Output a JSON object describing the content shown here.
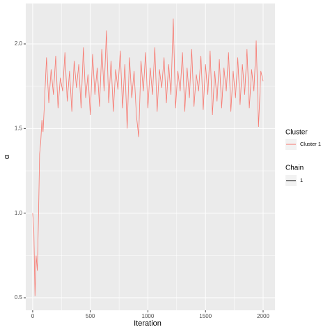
{
  "chart_data": {
    "type": "line",
    "xlabel": "Iteration",
    "ylabel": "α",
    "x": [
      0,
      10,
      20,
      30,
      40,
      50,
      60,
      70,
      80,
      90,
      100,
      120,
      140,
      160,
      180,
      200,
      220,
      240,
      260,
      280,
      300,
      320,
      340,
      360,
      380,
      400,
      420,
      440,
      460,
      480,
      500,
      520,
      540,
      560,
      580,
      600,
      620,
      640,
      660,
      680,
      700,
      720,
      740,
      760,
      780,
      800,
      820,
      840,
      860,
      880,
      900,
      920,
      940,
      960,
      980,
      1000,
      1020,
      1040,
      1060,
      1080,
      1100,
      1120,
      1140,
      1160,
      1180,
      1200,
      1220,
      1240,
      1260,
      1280,
      1300,
      1320,
      1340,
      1360,
      1380,
      1400,
      1420,
      1440,
      1460,
      1480,
      1500,
      1520,
      1540,
      1560,
      1580,
      1600,
      1620,
      1640,
      1660,
      1680,
      1700,
      1720,
      1740,
      1760,
      1780,
      1800,
      1820,
      1840,
      1860,
      1880,
      1900,
      1920,
      1940,
      1960,
      1980,
      2000
    ],
    "series": [
      {
        "name": "Cluster 1",
        "color": "#F8766D",
        "values": [
          1.0,
          0.9,
          0.51,
          0.75,
          0.66,
          0.95,
          1.35,
          1.42,
          1.55,
          1.48,
          1.62,
          1.92,
          1.65,
          1.85,
          1.7,
          1.93,
          1.62,
          1.8,
          1.72,
          1.95,
          1.66,
          1.84,
          1.6,
          1.9,
          1.74,
          1.88,
          1.62,
          1.98,
          1.68,
          1.82,
          1.58,
          1.94,
          1.7,
          1.86,
          1.63,
          1.97,
          1.72,
          2.08,
          1.65,
          1.9,
          1.6,
          1.85,
          1.73,
          1.96,
          1.62,
          1.88,
          1.5,
          1.92,
          1.68,
          1.84,
          1.58,
          1.45,
          1.9,
          1.72,
          1.95,
          1.62,
          1.86,
          1.7,
          1.98,
          1.6,
          1.85,
          1.74,
          1.92,
          1.65,
          1.88,
          1.7,
          2.15,
          1.62,
          1.84,
          1.72,
          1.95,
          1.6,
          1.86,
          1.68,
          1.97,
          1.63,
          1.82,
          1.72,
          1.93,
          1.61,
          1.88,
          1.7,
          1.96,
          1.58,
          1.84,
          1.66,
          1.91,
          1.62,
          1.86,
          1.72,
          1.95,
          1.6,
          1.84,
          1.68,
          1.92,
          1.64,
          1.88,
          1.7,
          1.97,
          1.62,
          1.85,
          1.72,
          2.02,
          1.51,
          1.84,
          1.78
        ]
      }
    ],
    "xlim": [
      -60,
      2103
    ],
    "ylim": [
      0.426,
      2.239
    ],
    "xticks": [
      0,
      500,
      1000,
      1500,
      2000
    ],
    "yticks": [
      {
        "value": 0.5,
        "label": "0.5"
      },
      {
        "value": 1.0,
        "label": "1.0"
      },
      {
        "value": 1.5,
        "label": "1.5"
      },
      {
        "value": 2.0,
        "label": "2.0"
      }
    ],
    "xminor": [
      250,
      750,
      1250,
      1750
    ],
    "yminor": [
      0.75,
      1.25,
      1.75
    ],
    "grid": true,
    "legend_title": "Cluster",
    "chain_legend": {
      "title": "Chain",
      "labels": [
        "1"
      ],
      "color": "#000000"
    }
  }
}
